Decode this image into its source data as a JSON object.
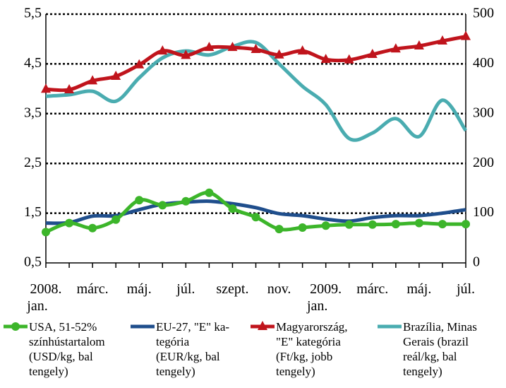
{
  "chart_data": {
    "type": "line",
    "categories": [
      "2008.\njan.",
      null,
      "márc.",
      null,
      "máj.",
      null,
      "júl.",
      null,
      "szept.",
      null,
      "nov.",
      null,
      "2009.\njan.",
      null,
      "márc.",
      null,
      "máj.",
      null,
      "júl."
    ],
    "ylim": [
      0.5,
      5.5
    ],
    "yticks": [
      {
        "value": 0.5,
        "label": "0,5"
      },
      {
        "value": 1.5,
        "label": "1,5"
      },
      {
        "value": 2.5,
        "label": "2,5"
      },
      {
        "value": 3.5,
        "label": "3,5"
      },
      {
        "value": 4.5,
        "label": "4,5"
      },
      {
        "value": 5.5,
        "label": "5,5"
      }
    ],
    "y2lim": [
      0,
      500
    ],
    "y2ticks": [
      0,
      100,
      200,
      300,
      400,
      500
    ],
    "grid": true,
    "series": [
      {
        "name": "USA, 51-52%\nszínhústartalom\n(USD/kg, bal\ntengely)",
        "color": "#3cb52a",
        "marker": "circle",
        "values": [
          1.12,
          1.3,
          1.2,
          1.37,
          1.76,
          1.66,
          1.74,
          1.91,
          1.59,
          1.42,
          1.18,
          1.21,
          1.25,
          1.27,
          1.27,
          1.28,
          1.3,
          1.28,
          1.28
        ]
      },
      {
        "name": "EU-27, \"E\" ka-\ntegória\n(EUR/kg, bal\ntengely)",
        "color": "#1f4e8c",
        "values": [
          1.3,
          1.31,
          1.44,
          1.45,
          1.57,
          1.68,
          1.72,
          1.74,
          1.69,
          1.61,
          1.49,
          1.45,
          1.38,
          1.34,
          1.41,
          1.45,
          1.45,
          1.5,
          1.57
        ]
      },
      {
        "name": "Magyarország,\n\"E\" kategória\n(Ft/kg, jobb\ntengely)",
        "color": "#c0141c",
        "marker": "triangle",
        "axis": "y2",
        "values": [
          349,
          348,
          366,
          375,
          398,
          426,
          417,
          433,
          433,
          429,
          418,
          426,
          409,
          408,
          419,
          430,
          436,
          446,
          455
        ]
      },
      {
        "name": "Brazília, Minas\nGerais (brazil\nreál/kg, bal\ntengely)",
        "color": "#4aacb0",
        "values": [
          3.85,
          3.88,
          3.95,
          3.75,
          4.22,
          4.62,
          4.76,
          4.68,
          4.85,
          4.93,
          4.5,
          4.05,
          3.68,
          3.0,
          3.11,
          3.4,
          3.04,
          3.77,
          3.16
        ]
      }
    ]
  }
}
